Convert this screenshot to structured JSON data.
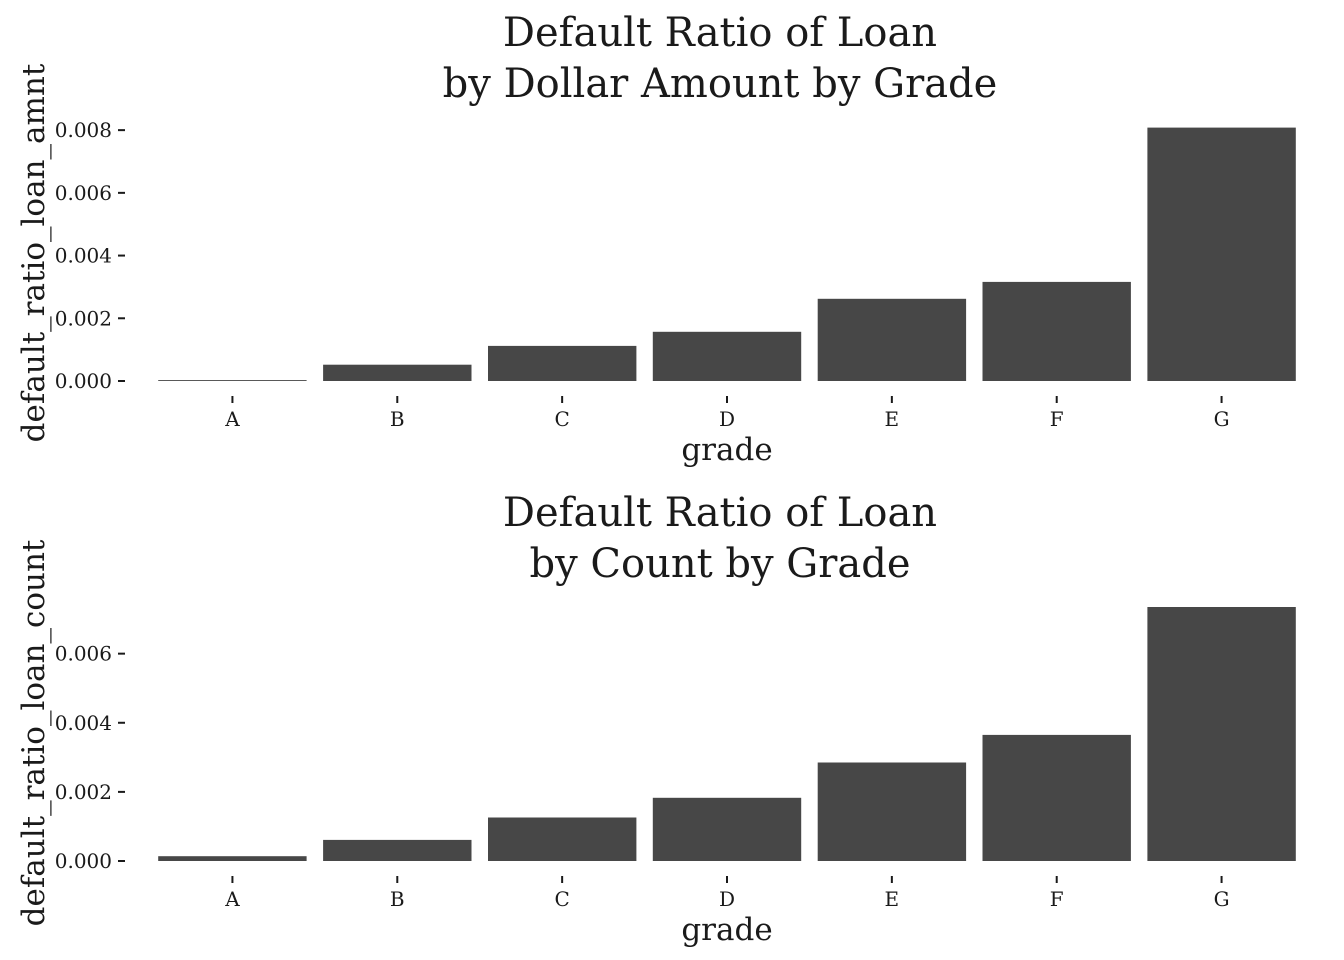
{
  "bar_color": "#474747",
  "chart_data": [
    {
      "type": "bar",
      "title_lines": [
        "Default Ratio of Loan",
        "by Dollar Amount by Grade"
      ],
      "xlabel": "grade",
      "ylabel": "default_ratio_loan_amnt",
      "categories": [
        "A",
        "B",
        "C",
        "D",
        "E",
        "F",
        "G"
      ],
      "values": [
        3e-05,
        0.00052,
        0.00112,
        0.00157,
        0.00262,
        0.00316,
        0.00808
      ],
      "yticks": [
        0.0,
        0.002,
        0.004,
        0.006,
        0.008
      ],
      "ytick_labels": [
        "0.000",
        "0.002",
        "0.004",
        "0.006",
        "0.008"
      ],
      "ylim": [
        0,
        0.0081
      ],
      "grid": false,
      "legend": "none"
    },
    {
      "type": "bar",
      "title_lines": [
        "Default Ratio of Loan",
        "by Count by Grade"
      ],
      "xlabel": "grade",
      "ylabel": "default_ratio_loan_count",
      "categories": [
        "A",
        "B",
        "C",
        "D",
        "E",
        "F",
        "G"
      ],
      "values": [
        0.00014,
        0.00061,
        0.00126,
        0.00183,
        0.00285,
        0.00365,
        0.00735
      ],
      "yticks": [
        0.0,
        0.002,
        0.004,
        0.006
      ],
      "ytick_labels": [
        "0.000",
        "0.002",
        "0.004",
        "0.006"
      ],
      "ylim": [
        0,
        0.00735
      ],
      "grid": false,
      "legend": "none"
    }
  ]
}
